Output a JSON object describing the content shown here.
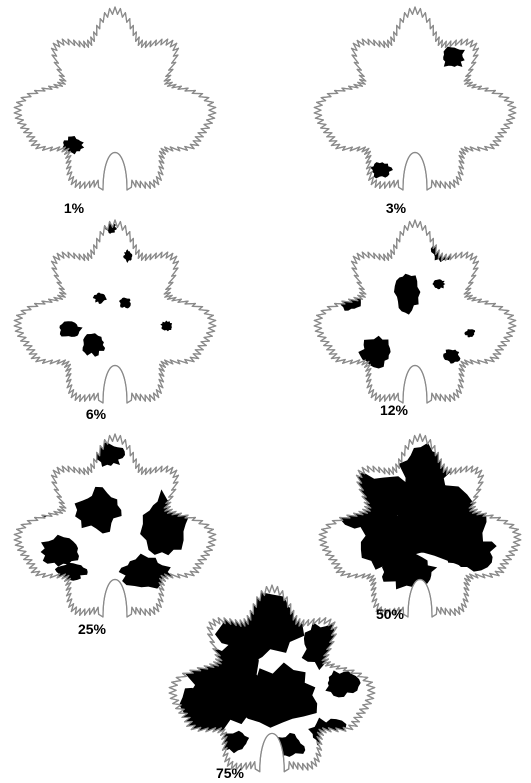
{
  "leaves": [
    {
      "label": "1%",
      "severity_percent": 1
    },
    {
      "label": "3%",
      "severity_percent": 3
    },
    {
      "label": "6%",
      "severity_percent": 6
    },
    {
      "label": "12%",
      "severity_percent": 12
    },
    {
      "label": "25%",
      "severity_percent": 25
    },
    {
      "label": "50%",
      "severity_percent": 50
    },
    {
      "label": "75%",
      "severity_percent": 75
    }
  ],
  "colors": {
    "outline": "#8a8a8a",
    "lesion": "#000000",
    "background": "#ffffff"
  }
}
